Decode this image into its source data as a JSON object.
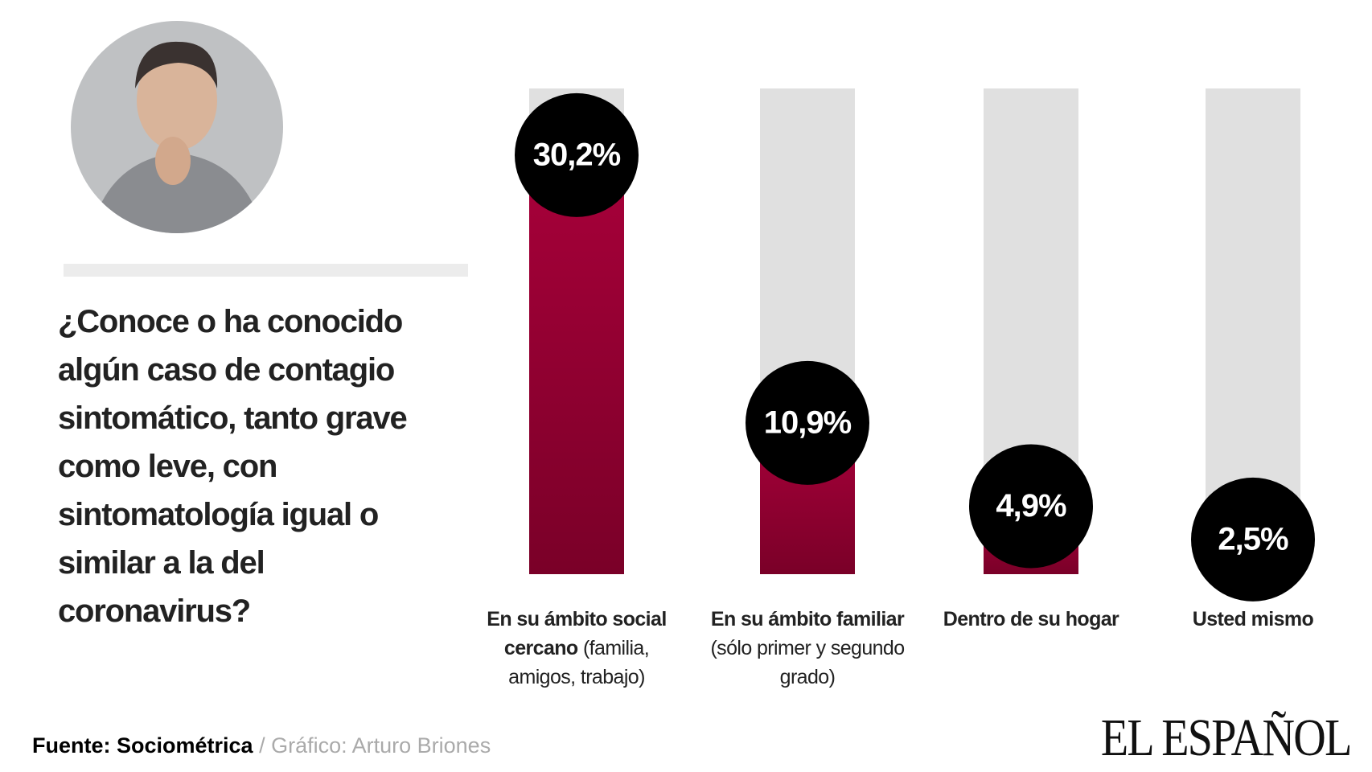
{
  "chart_data": {
    "type": "bar",
    "title": "¿Conoce o ha conocido algún caso de contagio sintomático, tanto grave como leve, con sintomatología igual o similar a la del coronavirus?",
    "categories": [
      "En su ámbito social cercano",
      "En su ámbito familiar",
      "Dentro de su hogar",
      "Usted mismo"
    ],
    "category_details": [
      "(familia, amigos, trabajo)",
      "(sólo primer y segundo grado)",
      null,
      null
    ],
    "values": [
      30.2,
      10.9,
      4.9,
      2.5
    ],
    "value_labels": [
      "30,2%",
      "10,9%",
      "4,9%",
      "2,5%"
    ],
    "color": "#9c0032",
    "track_color": "#e0e0e0",
    "label_circle_color": "#000000",
    "ylim": [
      0,
      35
    ],
    "source": "Fuente: Sociométrica",
    "credit": "/ Gráfico: Arturo Briones",
    "brand": "EL ESPAÑOL"
  }
}
